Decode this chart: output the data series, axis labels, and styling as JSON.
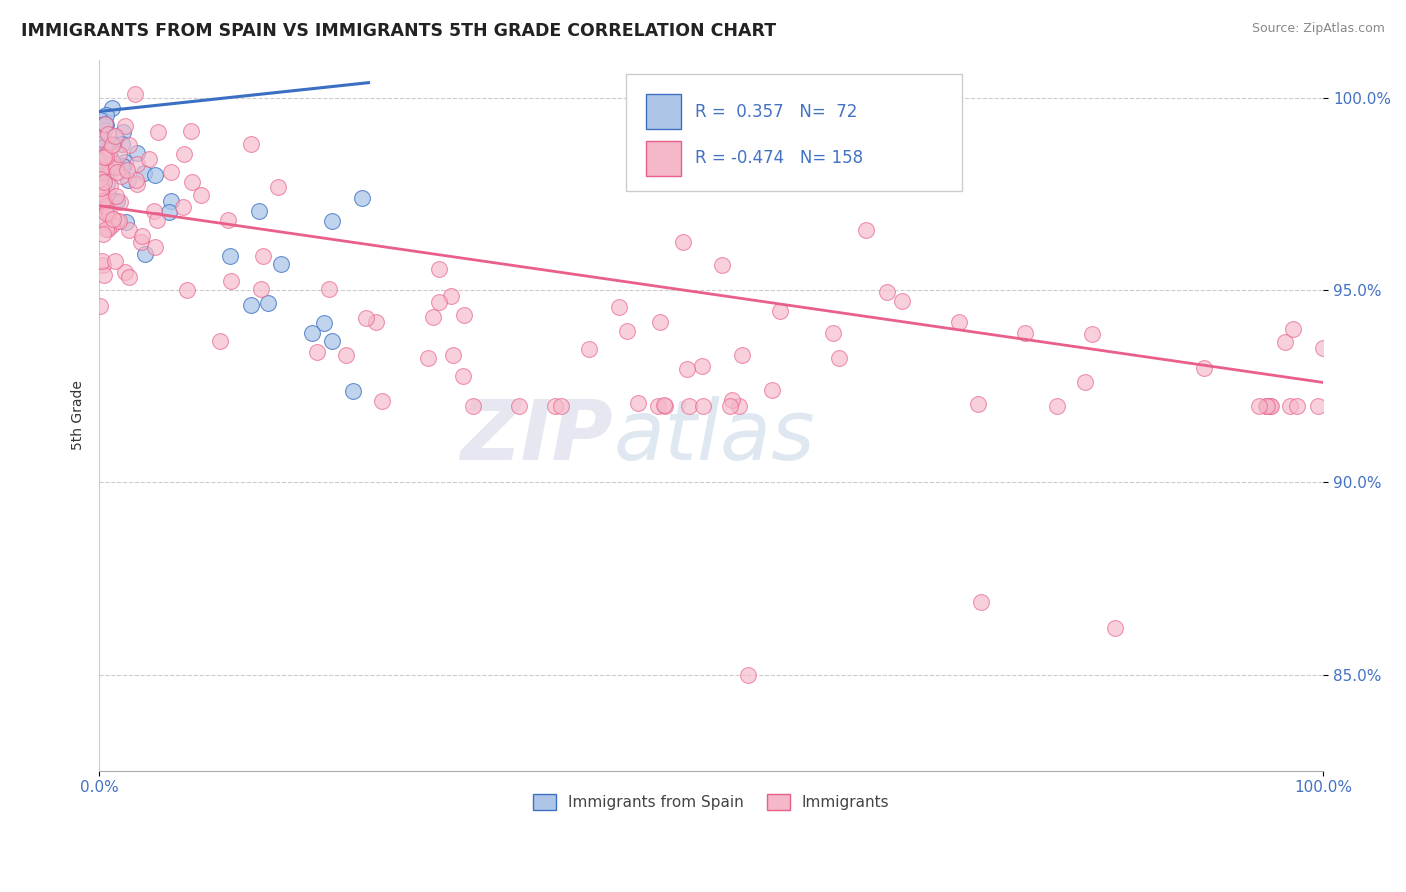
{
  "title": "IMMIGRANTS FROM SPAIN VS IMMIGRANTS 5TH GRADE CORRELATION CHART",
  "source": "Source: ZipAtlas.com",
  "ylabel": "5th Grade",
  "r1": 0.357,
  "n1": 72,
  "r2": -0.474,
  "n2": 158,
  "color_blue": "#adc6e8",
  "color_pink": "#f5b8c8",
  "line_blue": "#3a6fc4",
  "line_pink": "#e8608a",
  "legend_label1": "Immigrants from Spain",
  "legend_label2": "Immigrants",
  "xlim": [
    0.0,
    1.0
  ],
  "ylim": [
    0.825,
    1.01
  ],
  "ytick_vals": [
    0.85,
    0.9,
    0.95,
    1.0
  ],
  "ytick_labels": [
    "85.0%",
    "90.0%",
    "95.0%",
    "100.0%"
  ],
  "blue_trend_x": [
    0.0,
    0.22
  ],
  "blue_trend_y": [
    0.9965,
    1.004
  ],
  "pink_trend_x": [
    0.0,
    1.0
  ],
  "pink_trend_y": [
    0.972,
    0.926
  ],
  "watermark_zip": "ZIP",
  "watermark_atlas": "atlas"
}
